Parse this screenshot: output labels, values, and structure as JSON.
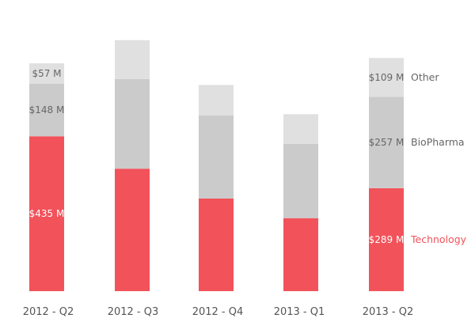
{
  "chart_data": {
    "type": "bar",
    "stacked": true,
    "categories": [
      "2012 - Q2",
      "2012 - Q3",
      "2012 - Q4",
      "2013 - Q1",
      "2013 - Q2"
    ],
    "series": [
      {
        "name": "Technology",
        "color": "#f2525a",
        "values": [
          435,
          344,
          260,
          205,
          289
        ],
        "data_labels": [
          "$435 M",
          "",
          "",
          "",
          "$289 M"
        ],
        "label_color": "#ffffff",
        "legend_color": "#f2525a"
      },
      {
        "name": "BioPharma",
        "color": "#cbcbcb",
        "values": [
          148,
          252,
          234,
          209,
          257
        ],
        "data_labels": [
          "$148 M",
          "",
          "",
          "",
          "$257 M"
        ],
        "label_color": "#666666",
        "legend_color": "#666666"
      },
      {
        "name": "Other",
        "color": "#e0e0e0",
        "values": [
          57,
          109,
          85,
          83,
          109
        ],
        "data_labels": [
          "$57 M",
          "",
          "",
          "",
          "$109 M"
        ],
        "label_color": "#666666",
        "legend_color": "#666666"
      }
    ],
    "title": "",
    "xlabel": "",
    "ylabel": "",
    "ylim": [
      0,
      700
    ],
    "grid": false,
    "legend": "direct labels right of last bar"
  }
}
